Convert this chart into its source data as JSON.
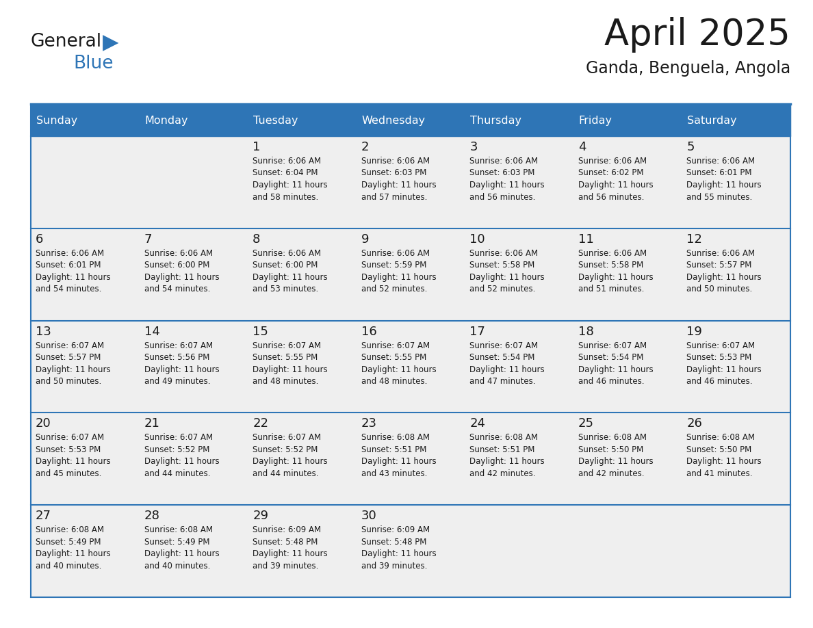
{
  "title": "April 2025",
  "subtitle": "Ganda, Benguela, Angola",
  "header_bg": "#2E75B6",
  "header_text": "#FFFFFF",
  "cell_bg_odd": "#EFEFEF",
  "cell_bg_even": "#EFEFEF",
  "day_number_color": "#1a1a1a",
  "cell_text_color": "#1a1a1a",
  "grid_line_color": "#2E75B6",
  "separator_line_color": "#2E75B6",
  "days_of_week": [
    "Sunday",
    "Monday",
    "Tuesday",
    "Wednesday",
    "Thursday",
    "Friday",
    "Saturday"
  ],
  "weeks": [
    [
      {
        "day": null,
        "text": ""
      },
      {
        "day": null,
        "text": ""
      },
      {
        "day": 1,
        "text": "Sunrise: 6:06 AM\nSunset: 6:04 PM\nDaylight: 11 hours\nand 58 minutes."
      },
      {
        "day": 2,
        "text": "Sunrise: 6:06 AM\nSunset: 6:03 PM\nDaylight: 11 hours\nand 57 minutes."
      },
      {
        "day": 3,
        "text": "Sunrise: 6:06 AM\nSunset: 6:03 PM\nDaylight: 11 hours\nand 56 minutes."
      },
      {
        "day": 4,
        "text": "Sunrise: 6:06 AM\nSunset: 6:02 PM\nDaylight: 11 hours\nand 56 minutes."
      },
      {
        "day": 5,
        "text": "Sunrise: 6:06 AM\nSunset: 6:01 PM\nDaylight: 11 hours\nand 55 minutes."
      }
    ],
    [
      {
        "day": 6,
        "text": "Sunrise: 6:06 AM\nSunset: 6:01 PM\nDaylight: 11 hours\nand 54 minutes."
      },
      {
        "day": 7,
        "text": "Sunrise: 6:06 AM\nSunset: 6:00 PM\nDaylight: 11 hours\nand 54 minutes."
      },
      {
        "day": 8,
        "text": "Sunrise: 6:06 AM\nSunset: 6:00 PM\nDaylight: 11 hours\nand 53 minutes."
      },
      {
        "day": 9,
        "text": "Sunrise: 6:06 AM\nSunset: 5:59 PM\nDaylight: 11 hours\nand 52 minutes."
      },
      {
        "day": 10,
        "text": "Sunrise: 6:06 AM\nSunset: 5:58 PM\nDaylight: 11 hours\nand 52 minutes."
      },
      {
        "day": 11,
        "text": "Sunrise: 6:06 AM\nSunset: 5:58 PM\nDaylight: 11 hours\nand 51 minutes."
      },
      {
        "day": 12,
        "text": "Sunrise: 6:06 AM\nSunset: 5:57 PM\nDaylight: 11 hours\nand 50 minutes."
      }
    ],
    [
      {
        "day": 13,
        "text": "Sunrise: 6:07 AM\nSunset: 5:57 PM\nDaylight: 11 hours\nand 50 minutes."
      },
      {
        "day": 14,
        "text": "Sunrise: 6:07 AM\nSunset: 5:56 PM\nDaylight: 11 hours\nand 49 minutes."
      },
      {
        "day": 15,
        "text": "Sunrise: 6:07 AM\nSunset: 5:55 PM\nDaylight: 11 hours\nand 48 minutes."
      },
      {
        "day": 16,
        "text": "Sunrise: 6:07 AM\nSunset: 5:55 PM\nDaylight: 11 hours\nand 48 minutes."
      },
      {
        "day": 17,
        "text": "Sunrise: 6:07 AM\nSunset: 5:54 PM\nDaylight: 11 hours\nand 47 minutes."
      },
      {
        "day": 18,
        "text": "Sunrise: 6:07 AM\nSunset: 5:54 PM\nDaylight: 11 hours\nand 46 minutes."
      },
      {
        "day": 19,
        "text": "Sunrise: 6:07 AM\nSunset: 5:53 PM\nDaylight: 11 hours\nand 46 minutes."
      }
    ],
    [
      {
        "day": 20,
        "text": "Sunrise: 6:07 AM\nSunset: 5:53 PM\nDaylight: 11 hours\nand 45 minutes."
      },
      {
        "day": 21,
        "text": "Sunrise: 6:07 AM\nSunset: 5:52 PM\nDaylight: 11 hours\nand 44 minutes."
      },
      {
        "day": 22,
        "text": "Sunrise: 6:07 AM\nSunset: 5:52 PM\nDaylight: 11 hours\nand 44 minutes."
      },
      {
        "day": 23,
        "text": "Sunrise: 6:08 AM\nSunset: 5:51 PM\nDaylight: 11 hours\nand 43 minutes."
      },
      {
        "day": 24,
        "text": "Sunrise: 6:08 AM\nSunset: 5:51 PM\nDaylight: 11 hours\nand 42 minutes."
      },
      {
        "day": 25,
        "text": "Sunrise: 6:08 AM\nSunset: 5:50 PM\nDaylight: 11 hours\nand 42 minutes."
      },
      {
        "day": 26,
        "text": "Sunrise: 6:08 AM\nSunset: 5:50 PM\nDaylight: 11 hours\nand 41 minutes."
      }
    ],
    [
      {
        "day": 27,
        "text": "Sunrise: 6:08 AM\nSunset: 5:49 PM\nDaylight: 11 hours\nand 40 minutes."
      },
      {
        "day": 28,
        "text": "Sunrise: 6:08 AM\nSunset: 5:49 PM\nDaylight: 11 hours\nand 40 minutes."
      },
      {
        "day": 29,
        "text": "Sunrise: 6:09 AM\nSunset: 5:48 PM\nDaylight: 11 hours\nand 39 minutes."
      },
      {
        "day": 30,
        "text": "Sunrise: 6:09 AM\nSunset: 5:48 PM\nDaylight: 11 hours\nand 39 minutes."
      },
      {
        "day": null,
        "text": ""
      },
      {
        "day": null,
        "text": ""
      },
      {
        "day": null,
        "text": ""
      }
    ]
  ],
  "logo_general_color": "#1a1a1a",
  "logo_blue_color": "#2E75B6",
  "fig_width": 11.88,
  "fig_height": 9.18,
  "dpi": 100
}
